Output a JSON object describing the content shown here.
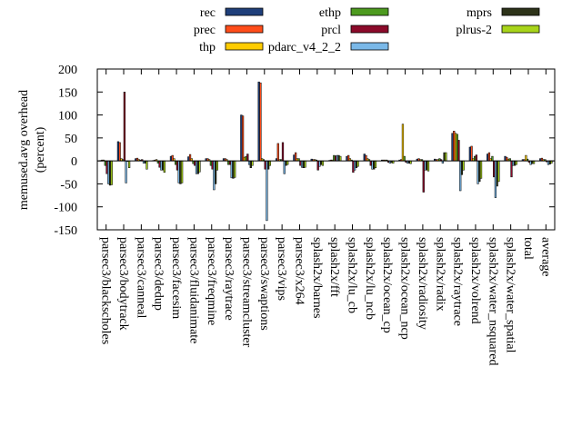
{
  "chart_data": {
    "type": "bar",
    "title": "",
    "xlabel": "",
    "ylabel_lines": [
      "memused.avg overhead",
      "(percent)"
    ],
    "ylim": [
      -150,
      200
    ],
    "yticks": [
      -150,
      -100,
      -50,
      0,
      50,
      100,
      150,
      200
    ],
    "grid": false,
    "legend_position": "top",
    "categories": [
      "parsec3/blackscholes",
      "parsec3/bodytrack",
      "parsec3/canneal",
      "parsec3/dedup",
      "parsec3/facesim",
      "parsec3/fluidanimate",
      "parsec3/freqmine",
      "parsec3/raytrace",
      "parsec3/streamcluster",
      "parsec3/swaptions",
      "parsec3/vips",
      "parsec3/x264",
      "splash2x/barnes",
      "splash2x/fft",
      "splash2x/lu_cb",
      "splash2x/lu_ncb",
      "splash2x/ocean_cp",
      "splash2x/ocean_ncp",
      "splash2x/radiosity",
      "splash2x/radix",
      "splash2x/raytrace",
      "splash2x/volrend",
      "splash2x/water_nsquared",
      "splash2x/water_spatial",
      "total",
      "average"
    ],
    "series": [
      {
        "name": "rec",
        "color": "#1f3f7a",
        "values": [
          1,
          42,
          5,
          1,
          10,
          9,
          5,
          5,
          100,
          172,
          5,
          13,
          4,
          1,
          10,
          15,
          2,
          2,
          4,
          4,
          60,
          30,
          15,
          10,
          3,
          5
        ]
      },
      {
        "name": "prec",
        "color": "#ff4d1a",
        "values": [
          2,
          40,
          6,
          2,
          12,
          14,
          5,
          5,
          98,
          170,
          38,
          18,
          3,
          2,
          12,
          12,
          2,
          3,
          5,
          3,
          65,
          32,
          18,
          8,
          3,
          6
        ]
      },
      {
        "name": "thp",
        "color": "#ffcc00",
        "values": [
          2,
          5,
          3,
          3,
          5,
          5,
          3,
          3,
          8,
          5,
          3,
          5,
          3,
          2,
          5,
          5,
          2,
          80,
          3,
          3,
          60,
          5,
          5,
          4,
          12,
          3
        ]
      },
      {
        "name": "ethp",
        "color": "#4d9a1f",
        "values": [
          -10,
          3,
          2,
          -5,
          -8,
          -6,
          -10,
          -8,
          10,
          3,
          3,
          5,
          2,
          12,
          2,
          3,
          2,
          10,
          3,
          5,
          58,
          10,
          10,
          5,
          4,
          3
        ]
      },
      {
        "name": "prcl",
        "color": "#8b0a2a",
        "values": [
          -28,
          150,
          3,
          -14,
          -20,
          -10,
          -18,
          -8,
          15,
          -18,
          40,
          -10,
          -20,
          11,
          -25,
          -10,
          -3,
          -3,
          -68,
          3,
          45,
          13,
          -35,
          -35,
          -3,
          -2
        ]
      },
      {
        "name": "pdarc_v4_2_2",
        "color": "#7ab8e8",
        "values": [
          -50,
          -48,
          -5,
          -20,
          -48,
          -28,
          -63,
          -37,
          -8,
          -130,
          -28,
          -14,
          -12,
          12,
          -20,
          -18,
          -5,
          -5,
          -20,
          -5,
          -65,
          -50,
          -80,
          -10,
          -8,
          -8
        ]
      },
      {
        "name": "mprs",
        "color": "#2d3319",
        "values": [
          -53,
          0,
          -5,
          -20,
          -50,
          -28,
          -50,
          -38,
          -15,
          -18,
          -10,
          -15,
          -8,
          12,
          -15,
          -18,
          -4,
          -5,
          -20,
          18,
          -30,
          -45,
          -55,
          -10,
          -6,
          -7
        ]
      },
      {
        "name": "plrus-2",
        "color": "#a8d41a",
        "values": [
          -52,
          -15,
          -18,
          -25,
          -48,
          -24,
          -20,
          -36,
          -10,
          -10,
          -8,
          -14,
          -10,
          10,
          -12,
          -15,
          -5,
          -6,
          -22,
          18,
          -20,
          -38,
          -45,
          -8,
          -6,
          -5
        ]
      }
    ]
  }
}
